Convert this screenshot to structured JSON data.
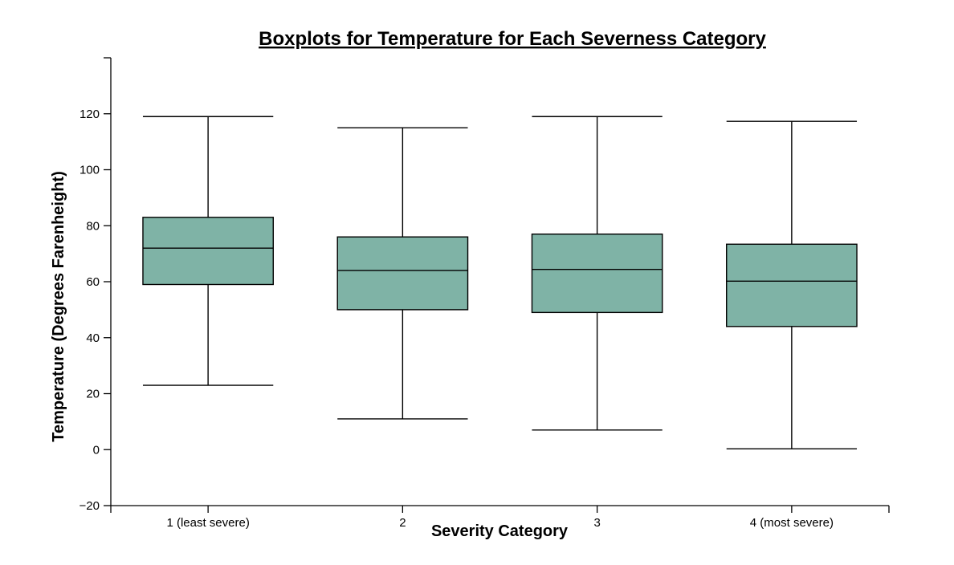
{
  "chart_data": {
    "type": "boxplot",
    "title": "Boxplots for Temperature for Each Severness Category",
    "xlabel": "Severity Category",
    "ylabel": "Temperature (Degrees Farenheight)",
    "ylim": [
      -20,
      140
    ],
    "yticks": [
      -20,
      0,
      20,
      40,
      60,
      80,
      100,
      120
    ],
    "yticklabels": [
      "−20",
      "0",
      "20",
      "40",
      "60",
      "80",
      "100",
      "120"
    ],
    "categories": [
      "1 (least severe)",
      "2",
      "3",
      "4 (most severe)"
    ],
    "box_color": "#7fb3a6",
    "series": [
      {
        "min": 23.0,
        "q1": 59.0,
        "median": 72.0,
        "q3": 83.0,
        "max": 119.0
      },
      {
        "min": 11.0,
        "q1": 50.0,
        "median": 64.0,
        "q3": 76.0,
        "max": 115.0
      },
      {
        "min": 7.0,
        "q1": 49.0,
        "median": 64.4,
        "q3": 77.0,
        "max": 119.0
      },
      {
        "min": 0.3,
        "q1": 44.0,
        "median": 60.2,
        "q3": 73.4,
        "max": 117.3
      }
    ]
  }
}
